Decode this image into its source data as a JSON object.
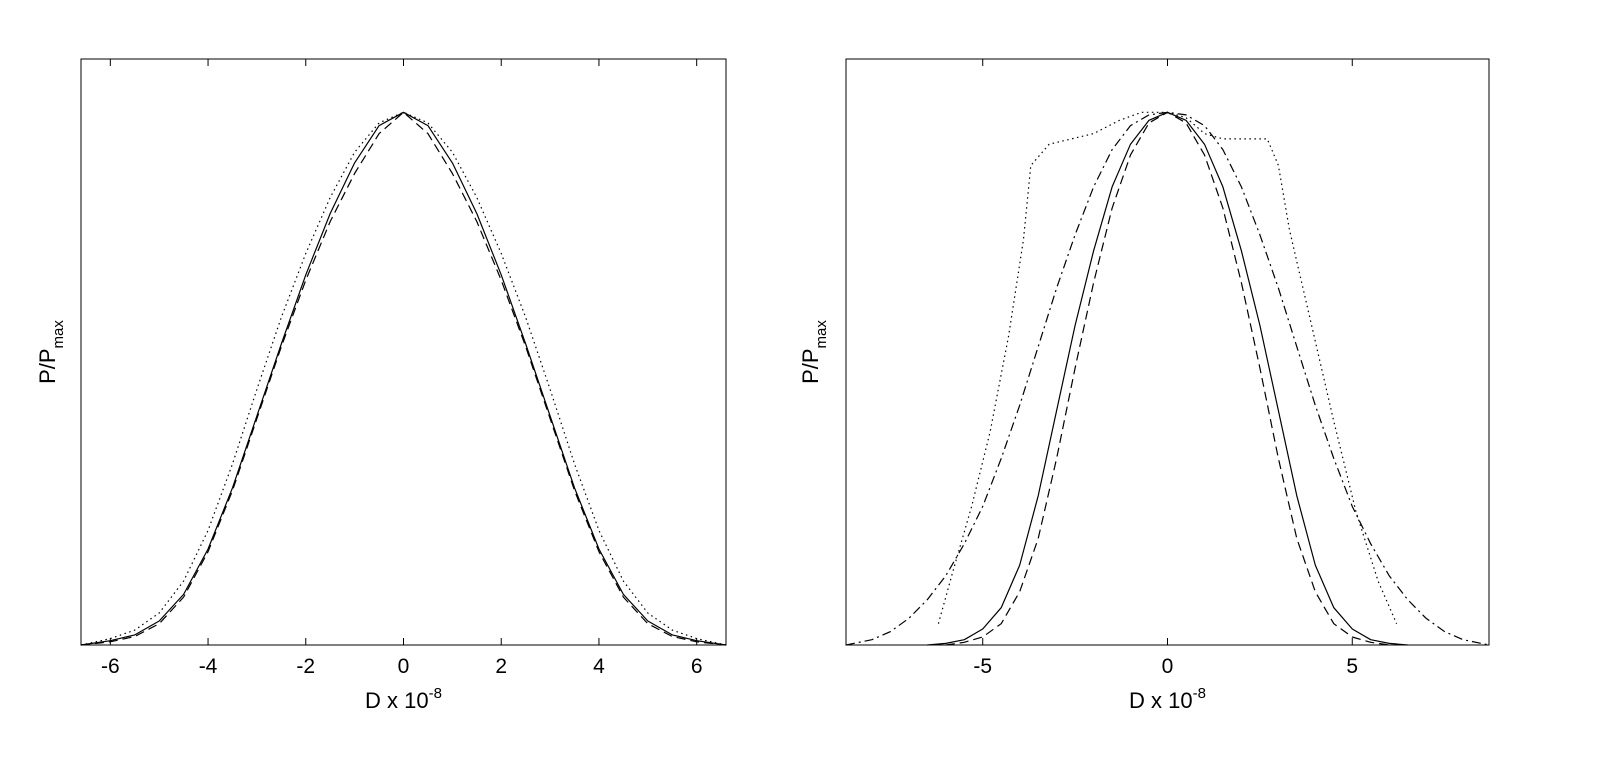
{
  "colors": {
    "line": "#000000",
    "background": "#ffffff"
  },
  "chart_data": [
    {
      "type": "line",
      "xlabel": {
        "base": "D x 10",
        "exponent": "-8"
      },
      "ylabel": {
        "base": "P/P",
        "subscript": "max"
      },
      "xlim": [
        -6.6,
        6.6
      ],
      "ylim": [
        0,
        1.1
      ],
      "xticks": [
        -6,
        -4,
        -2,
        0,
        2,
        4,
        6
      ],
      "yticks": [],
      "grid": false,
      "series": [
        {
          "style": "solid",
          "x": [
            -6.6,
            -6,
            -5.5,
            -5,
            -4.5,
            -4,
            -3.5,
            -3,
            -2.5,
            -2,
            -1.5,
            -1,
            -0.5,
            0,
            0.5,
            1,
            1.5,
            2,
            2.5,
            3,
            3.5,
            4,
            4.5,
            5,
            5.5,
            6,
            6.6
          ],
          "y": [
            0.0,
            0.008,
            0.019,
            0.045,
            0.095,
            0.18,
            0.295,
            0.43,
            0.565,
            0.695,
            0.81,
            0.905,
            0.975,
            1.0,
            0.975,
            0.905,
            0.81,
            0.695,
            0.565,
            0.43,
            0.295,
            0.18,
            0.095,
            0.045,
            0.019,
            0.008,
            0.0
          ]
        },
        {
          "style": "dashed",
          "x": [
            -6.6,
            -6,
            -5.5,
            -5,
            -4.5,
            -4,
            -3.5,
            -3,
            -2.5,
            -2,
            -1.5,
            -1,
            -0.5,
            0,
            0.5,
            1,
            1.5,
            2,
            2.5,
            3,
            3.5,
            4,
            4.5,
            5,
            5.5,
            6,
            6.6
          ],
          "y": [
            0.0,
            0.006,
            0.016,
            0.04,
            0.09,
            0.175,
            0.29,
            0.425,
            0.56,
            0.685,
            0.795,
            0.885,
            0.96,
            1.0,
            0.96,
            0.885,
            0.795,
            0.685,
            0.56,
            0.425,
            0.29,
            0.175,
            0.09,
            0.04,
            0.016,
            0.006,
            0.0
          ]
        },
        {
          "style": "dotted",
          "x": [
            -6.6,
            -6,
            -5.5,
            -5,
            -4.5,
            -4,
            -3.5,
            -3,
            -2.5,
            -2,
            -1.5,
            -1,
            -0.5,
            0,
            0.5,
            1,
            1.5,
            2,
            2.5,
            3,
            3.5,
            4,
            4.5,
            5,
            5.5,
            6,
            6.6
          ],
          "y": [
            0.0,
            0.012,
            0.028,
            0.06,
            0.12,
            0.215,
            0.34,
            0.48,
            0.615,
            0.735,
            0.84,
            0.925,
            0.98,
            1.0,
            0.98,
            0.925,
            0.84,
            0.735,
            0.615,
            0.48,
            0.34,
            0.215,
            0.12,
            0.06,
            0.028,
            0.012,
            0.0
          ]
        }
      ]
    },
    {
      "type": "line",
      "xlabel": {
        "base": "D x 10",
        "exponent": "-8"
      },
      "ylabel": {
        "base": "P/P",
        "subscript": "max"
      },
      "xlim": [
        -8.7,
        8.7
      ],
      "ylim": [
        0,
        1.1
      ],
      "xticks": [
        -5,
        0,
        5
      ],
      "yticks": [],
      "grid": false,
      "series": [
        {
          "style": "solid",
          "x": [
            -6.5,
            -6,
            -5.5,
            -5,
            -4.5,
            -4,
            -3.5,
            -3,
            -2.5,
            -2,
            -1.5,
            -1,
            -0.5,
            0,
            0.5,
            1,
            1.5,
            2,
            2.5,
            3,
            3.5,
            4,
            4.5,
            5,
            5.5,
            6,
            6.5
          ],
          "y": [
            0.0,
            0.003,
            0.01,
            0.03,
            0.07,
            0.15,
            0.28,
            0.44,
            0.6,
            0.74,
            0.86,
            0.94,
            0.985,
            1.0,
            0.985,
            0.94,
            0.86,
            0.74,
            0.6,
            0.44,
            0.28,
            0.15,
            0.07,
            0.03,
            0.01,
            0.003,
            0.0
          ]
        },
        {
          "style": "dashed",
          "x": [
            -6,
            -5.5,
            -5,
            -4.5,
            -4,
            -3.5,
            -3,
            -2.5,
            -2,
            -1.5,
            -1,
            -0.5,
            0,
            0.5,
            1,
            1.5,
            2,
            2.5,
            3,
            3.5,
            4,
            4.5,
            5,
            5.5,
            6
          ],
          "y": [
            0.0,
            0.005,
            0.015,
            0.04,
            0.1,
            0.2,
            0.35,
            0.52,
            0.68,
            0.82,
            0.92,
            0.98,
            1.0,
            0.98,
            0.92,
            0.82,
            0.68,
            0.52,
            0.35,
            0.2,
            0.1,
            0.04,
            0.015,
            0.005,
            0.0
          ]
        },
        {
          "style": "dashdot",
          "x": [
            -8.7,
            -8,
            -7.5,
            -7,
            -6.5,
            -6,
            -5.5,
            -5,
            -4.5,
            -4,
            -3.5,
            -3,
            -2.5,
            -2,
            -1.5,
            -1,
            -0.5,
            0,
            0.5,
            1,
            1.5,
            2,
            2.5,
            3,
            3.5,
            4,
            4.5,
            5,
            5.5,
            6,
            6.5,
            7,
            7.5,
            8,
            8.7
          ],
          "y": [
            0.0,
            0.01,
            0.025,
            0.05,
            0.085,
            0.13,
            0.19,
            0.26,
            0.35,
            0.45,
            0.56,
            0.67,
            0.77,
            0.86,
            0.93,
            0.975,
            0.995,
            1.0,
            0.995,
            0.975,
            0.93,
            0.86,
            0.77,
            0.67,
            0.56,
            0.45,
            0.35,
            0.26,
            0.19,
            0.13,
            0.085,
            0.05,
            0.025,
            0.01,
            0.0
          ]
        },
        {
          "style": "dotted",
          "x": [
            -6.2,
            -5.8,
            -5.3,
            -4.8,
            -4.3,
            -3.9,
            -3.7,
            -3.2,
            -2.6,
            -2,
            -1.3,
            -0.7,
            0,
            0.5,
            1,
            1.5,
            2,
            2.7,
            3,
            3.3,
            3.9,
            4.5,
            5.1,
            5.7,
            6.2
          ],
          "y": [
            0.04,
            0.14,
            0.26,
            0.4,
            0.58,
            0.76,
            0.9,
            0.94,
            0.95,
            0.96,
            0.985,
            1.0,
            1.0,
            0.99,
            0.96,
            0.95,
            0.95,
            0.95,
            0.9,
            0.78,
            0.6,
            0.42,
            0.25,
            0.12,
            0.04
          ]
        }
      ]
    }
  ]
}
